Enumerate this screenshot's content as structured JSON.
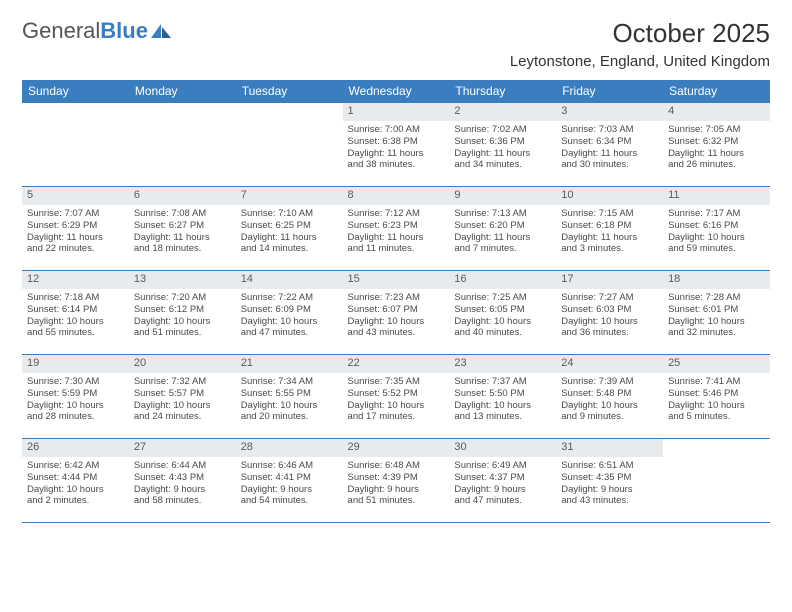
{
  "brand": {
    "word1": "General",
    "word2": "Blue"
  },
  "title": "October 2025",
  "location": "Leytonstone, England, United Kingdom",
  "colors": {
    "accent": "#3b7ec0",
    "daynum_bg": "#e8ebee",
    "text": "#4a4a4a"
  },
  "weekdays": [
    "Sunday",
    "Monday",
    "Tuesday",
    "Wednesday",
    "Thursday",
    "Friday",
    "Saturday"
  ],
  "weeks": [
    [
      null,
      null,
      null,
      {
        "d": "1",
        "sr": "Sunrise: 7:00 AM",
        "ss": "Sunset: 6:38 PM",
        "dl1": "Daylight: 11 hours",
        "dl2": "and 38 minutes."
      },
      {
        "d": "2",
        "sr": "Sunrise: 7:02 AM",
        "ss": "Sunset: 6:36 PM",
        "dl1": "Daylight: 11 hours",
        "dl2": "and 34 minutes."
      },
      {
        "d": "3",
        "sr": "Sunrise: 7:03 AM",
        "ss": "Sunset: 6:34 PM",
        "dl1": "Daylight: 11 hours",
        "dl2": "and 30 minutes."
      },
      {
        "d": "4",
        "sr": "Sunrise: 7:05 AM",
        "ss": "Sunset: 6:32 PM",
        "dl1": "Daylight: 11 hours",
        "dl2": "and 26 minutes."
      }
    ],
    [
      {
        "d": "5",
        "sr": "Sunrise: 7:07 AM",
        "ss": "Sunset: 6:29 PM",
        "dl1": "Daylight: 11 hours",
        "dl2": "and 22 minutes."
      },
      {
        "d": "6",
        "sr": "Sunrise: 7:08 AM",
        "ss": "Sunset: 6:27 PM",
        "dl1": "Daylight: 11 hours",
        "dl2": "and 18 minutes."
      },
      {
        "d": "7",
        "sr": "Sunrise: 7:10 AM",
        "ss": "Sunset: 6:25 PM",
        "dl1": "Daylight: 11 hours",
        "dl2": "and 14 minutes."
      },
      {
        "d": "8",
        "sr": "Sunrise: 7:12 AM",
        "ss": "Sunset: 6:23 PM",
        "dl1": "Daylight: 11 hours",
        "dl2": "and 11 minutes."
      },
      {
        "d": "9",
        "sr": "Sunrise: 7:13 AM",
        "ss": "Sunset: 6:20 PM",
        "dl1": "Daylight: 11 hours",
        "dl2": "and 7 minutes."
      },
      {
        "d": "10",
        "sr": "Sunrise: 7:15 AM",
        "ss": "Sunset: 6:18 PM",
        "dl1": "Daylight: 11 hours",
        "dl2": "and 3 minutes."
      },
      {
        "d": "11",
        "sr": "Sunrise: 7:17 AM",
        "ss": "Sunset: 6:16 PM",
        "dl1": "Daylight: 10 hours",
        "dl2": "and 59 minutes."
      }
    ],
    [
      {
        "d": "12",
        "sr": "Sunrise: 7:18 AM",
        "ss": "Sunset: 6:14 PM",
        "dl1": "Daylight: 10 hours",
        "dl2": "and 55 minutes."
      },
      {
        "d": "13",
        "sr": "Sunrise: 7:20 AM",
        "ss": "Sunset: 6:12 PM",
        "dl1": "Daylight: 10 hours",
        "dl2": "and 51 minutes."
      },
      {
        "d": "14",
        "sr": "Sunrise: 7:22 AM",
        "ss": "Sunset: 6:09 PM",
        "dl1": "Daylight: 10 hours",
        "dl2": "and 47 minutes."
      },
      {
        "d": "15",
        "sr": "Sunrise: 7:23 AM",
        "ss": "Sunset: 6:07 PM",
        "dl1": "Daylight: 10 hours",
        "dl2": "and 43 minutes."
      },
      {
        "d": "16",
        "sr": "Sunrise: 7:25 AM",
        "ss": "Sunset: 6:05 PM",
        "dl1": "Daylight: 10 hours",
        "dl2": "and 40 minutes."
      },
      {
        "d": "17",
        "sr": "Sunrise: 7:27 AM",
        "ss": "Sunset: 6:03 PM",
        "dl1": "Daylight: 10 hours",
        "dl2": "and 36 minutes."
      },
      {
        "d": "18",
        "sr": "Sunrise: 7:28 AM",
        "ss": "Sunset: 6:01 PM",
        "dl1": "Daylight: 10 hours",
        "dl2": "and 32 minutes."
      }
    ],
    [
      {
        "d": "19",
        "sr": "Sunrise: 7:30 AM",
        "ss": "Sunset: 5:59 PM",
        "dl1": "Daylight: 10 hours",
        "dl2": "and 28 minutes."
      },
      {
        "d": "20",
        "sr": "Sunrise: 7:32 AM",
        "ss": "Sunset: 5:57 PM",
        "dl1": "Daylight: 10 hours",
        "dl2": "and 24 minutes."
      },
      {
        "d": "21",
        "sr": "Sunrise: 7:34 AM",
        "ss": "Sunset: 5:55 PM",
        "dl1": "Daylight: 10 hours",
        "dl2": "and 20 minutes."
      },
      {
        "d": "22",
        "sr": "Sunrise: 7:35 AM",
        "ss": "Sunset: 5:52 PM",
        "dl1": "Daylight: 10 hours",
        "dl2": "and 17 minutes."
      },
      {
        "d": "23",
        "sr": "Sunrise: 7:37 AM",
        "ss": "Sunset: 5:50 PM",
        "dl1": "Daylight: 10 hours",
        "dl2": "and 13 minutes."
      },
      {
        "d": "24",
        "sr": "Sunrise: 7:39 AM",
        "ss": "Sunset: 5:48 PM",
        "dl1": "Daylight: 10 hours",
        "dl2": "and 9 minutes."
      },
      {
        "d": "25",
        "sr": "Sunrise: 7:41 AM",
        "ss": "Sunset: 5:46 PM",
        "dl1": "Daylight: 10 hours",
        "dl2": "and 5 minutes."
      }
    ],
    [
      {
        "d": "26",
        "sr": "Sunrise: 6:42 AM",
        "ss": "Sunset: 4:44 PM",
        "dl1": "Daylight: 10 hours",
        "dl2": "and 2 minutes."
      },
      {
        "d": "27",
        "sr": "Sunrise: 6:44 AM",
        "ss": "Sunset: 4:43 PM",
        "dl1": "Daylight: 9 hours",
        "dl2": "and 58 minutes."
      },
      {
        "d": "28",
        "sr": "Sunrise: 6:46 AM",
        "ss": "Sunset: 4:41 PM",
        "dl1": "Daylight: 9 hours",
        "dl2": "and 54 minutes."
      },
      {
        "d": "29",
        "sr": "Sunrise: 6:48 AM",
        "ss": "Sunset: 4:39 PM",
        "dl1": "Daylight: 9 hours",
        "dl2": "and 51 minutes."
      },
      {
        "d": "30",
        "sr": "Sunrise: 6:49 AM",
        "ss": "Sunset: 4:37 PM",
        "dl1": "Daylight: 9 hours",
        "dl2": "and 47 minutes."
      },
      {
        "d": "31",
        "sr": "Sunrise: 6:51 AM",
        "ss": "Sunset: 4:35 PM",
        "dl1": "Daylight: 9 hours",
        "dl2": "and 43 minutes."
      },
      null
    ]
  ]
}
